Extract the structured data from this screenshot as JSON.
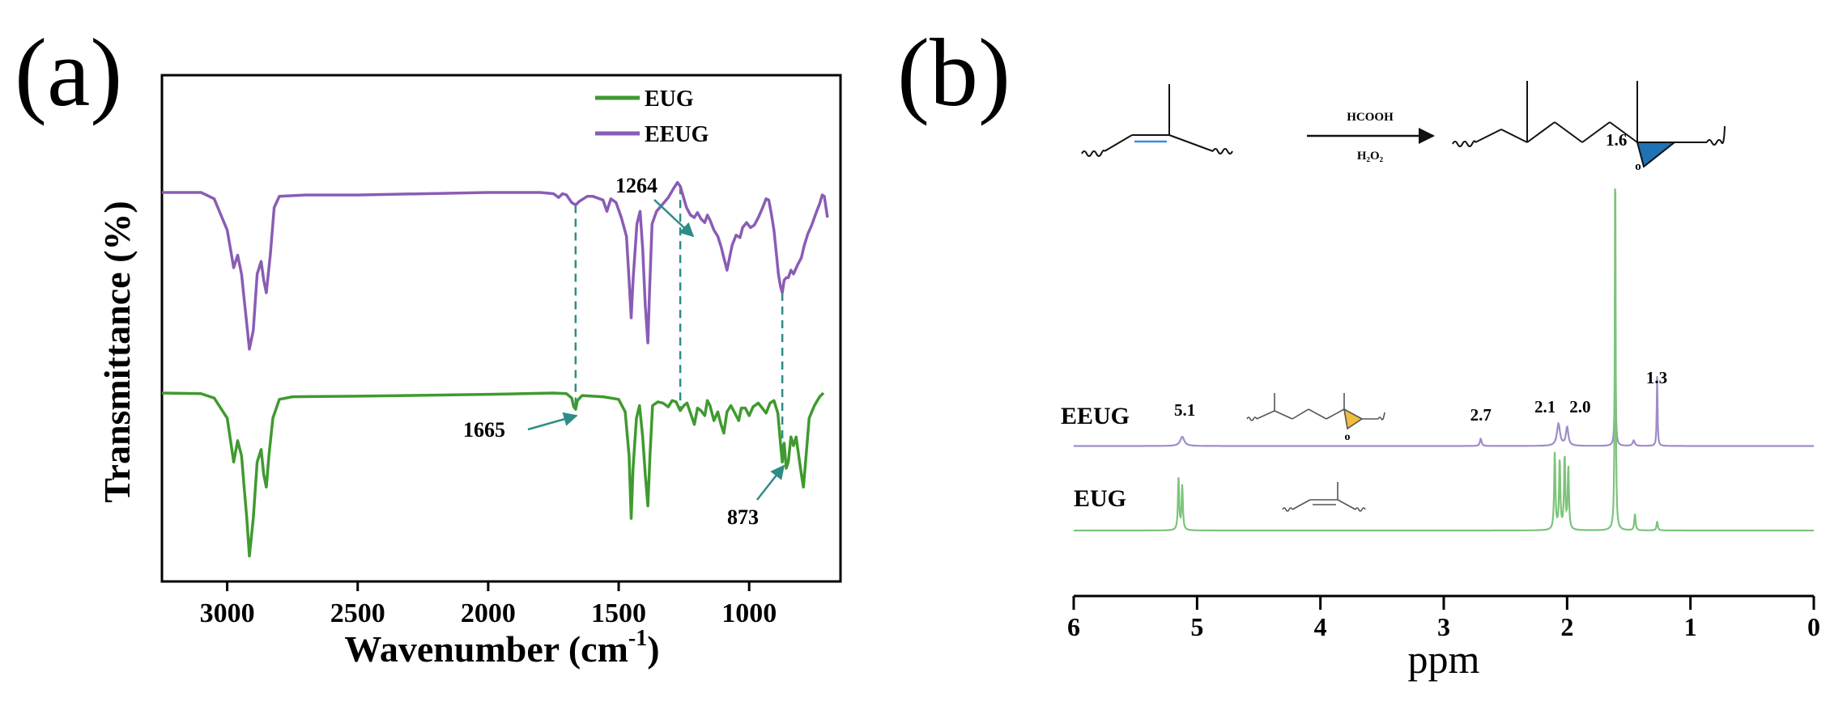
{
  "panel_a_label": "(a)",
  "panel_b_label": "(b)",
  "reaction": {
    "reagent_top": "HCOOH",
    "reagent_bottom": "H₂O₂",
    "oxygen": "o"
  },
  "chart_data": [
    {
      "type": "line",
      "xlabel": "Wavenumber (cm⁻¹)",
      "ylabel": "Transmittance (%)",
      "xlim": [
        3250,
        650
      ],
      "x_reversed": true,
      "xticks": [
        3000,
        2500,
        2000,
        1500,
        1000
      ],
      "legend_position": "top-right",
      "series": [
        {
          "name": "EUG",
          "color": "#3f9a2f",
          "offset": 0,
          "points": [
            [
              3250,
              0
            ],
            [
              3100,
              -0.05
            ],
            [
              3050,
              -0.4
            ],
            [
              3000,
              -2
            ],
            [
              2975,
              -5.5
            ],
            [
              2960,
              -3.8
            ],
            [
              2945,
              -5
            ],
            [
              2935,
              -7.5
            ],
            [
              2925,
              -10
            ],
            [
              2915,
              -13
            ],
            [
              2900,
              -10
            ],
            [
              2885,
              -5.5
            ],
            [
              2870,
              -4.5
            ],
            [
              2860,
              -6.5
            ],
            [
              2850,
              -7.5
            ],
            [
              2840,
              -5
            ],
            [
              2825,
              -2
            ],
            [
              2800,
              -0.5
            ],
            [
              2750,
              -0.3
            ],
            [
              2500,
              -0.25
            ],
            [
              2000,
              -0.1
            ],
            [
              1750,
              0
            ],
            [
              1700,
              -0.05
            ],
            [
              1680,
              -0.4
            ],
            [
              1672,
              -1.1
            ],
            [
              1665,
              -1.3
            ],
            [
              1658,
              -0.6
            ],
            [
              1640,
              -0.2
            ],
            [
              1560,
              -0.3
            ],
            [
              1500,
              -0.5
            ],
            [
              1475,
              -1.5
            ],
            [
              1460,
              -5
            ],
            [
              1452,
              -10
            ],
            [
              1445,
              -6
            ],
            [
              1432,
              -2
            ],
            [
              1420,
              -1
            ],
            [
              1408,
              -3.5
            ],
            [
              1398,
              -6.5
            ],
            [
              1388,
              -9
            ],
            [
              1380,
              -5
            ],
            [
              1370,
              -1
            ],
            [
              1350,
              -0.7
            ],
            [
              1330,
              -0.8
            ],
            [
              1310,
              -1.1
            ],
            [
              1295,
              -0.6
            ],
            [
              1280,
              -0.7
            ],
            [
              1264,
              -1.4
            ],
            [
              1250,
              -1
            ],
            [
              1238,
              -0.8
            ],
            [
              1225,
              -1.6
            ],
            [
              1210,
              -2.5
            ],
            [
              1198,
              -1.2
            ],
            [
              1185,
              -1.4
            ],
            [
              1170,
              -1.8
            ],
            [
              1160,
              -0.6
            ],
            [
              1150,
              -1
            ],
            [
              1135,
              -2.2
            ],
            [
              1120,
              -1.5
            ],
            [
              1108,
              -2.5
            ],
            [
              1097,
              -3.2
            ],
            [
              1085,
              -1.5
            ],
            [
              1070,
              -1
            ],
            [
              1055,
              -1.6
            ],
            [
              1040,
              -2.2
            ],
            [
              1030,
              -1.2
            ],
            [
              1015,
              -1.2
            ],
            [
              1000,
              -1.8
            ],
            [
              985,
              -1.1
            ],
            [
              965,
              -0.8
            ],
            [
              950,
              -1.2
            ],
            [
              935,
              -1.6
            ],
            [
              920,
              -0.8
            ],
            [
              905,
              -0.6
            ],
            [
              890,
              -1.6
            ],
            [
              880,
              -4
            ],
            [
              873,
              -5.5
            ],
            [
              866,
              -4
            ],
            [
              858,
              -6
            ],
            [
              850,
              -5.5
            ],
            [
              840,
              -3.5
            ],
            [
              830,
              -4.2
            ],
            [
              820,
              -3.5
            ],
            [
              810,
              -5
            ],
            [
              800,
              -6.5
            ],
            [
              792,
              -7.5
            ],
            [
              782,
              -5
            ],
            [
              770,
              -2
            ],
            [
              750,
              -1
            ],
            [
              730,
              -0.3
            ],
            [
              715,
              0
            ]
          ]
        },
        {
          "name": "EEUG",
          "color": "#8a5cb5",
          "offset": 16,
          "points": [
            [
              3250,
              0
            ],
            [
              3100,
              0
            ],
            [
              3050,
              -0.5
            ],
            [
              3000,
              -3
            ],
            [
              2975,
              -6
            ],
            [
              2960,
              -5
            ],
            [
              2945,
              -6.5
            ],
            [
              2935,
              -8.5
            ],
            [
              2925,
              -10.5
            ],
            [
              2915,
              -12.5
            ],
            [
              2900,
              -11
            ],
            [
              2885,
              -6.5
            ],
            [
              2870,
              -5.5
            ],
            [
              2860,
              -7
            ],
            [
              2850,
              -8
            ],
            [
              2835,
              -5
            ],
            [
              2820,
              -1.2
            ],
            [
              2800,
              -0.3
            ],
            [
              2700,
              -0.2
            ],
            [
              2500,
              -0.2
            ],
            [
              2000,
              0
            ],
            [
              1800,
              0
            ],
            [
              1750,
              -0.1
            ],
            [
              1730,
              -0.4
            ],
            [
              1715,
              -0.1
            ],
            [
              1700,
              -0.2
            ],
            [
              1680,
              -0.8
            ],
            [
              1665,
              -1
            ],
            [
              1650,
              -0.7
            ],
            [
              1620,
              -0.3
            ],
            [
              1600,
              -0.3
            ],
            [
              1560,
              -0.6
            ],
            [
              1545,
              -1.5
            ],
            [
              1530,
              -0.5
            ],
            [
              1510,
              -0.8
            ],
            [
              1490,
              -2
            ],
            [
              1470,
              -3.5
            ],
            [
              1460,
              -7
            ],
            [
              1452,
              -10
            ],
            [
              1445,
              -7
            ],
            [
              1430,
              -2.5
            ],
            [
              1418,
              -1.5
            ],
            [
              1408,
              -4.5
            ],
            [
              1398,
              -9
            ],
            [
              1388,
              -12
            ],
            [
              1382,
              -8
            ],
            [
              1372,
              -2.5
            ],
            [
              1355,
              -1.5
            ],
            [
              1330,
              -0.9
            ],
            [
              1310,
              -0.4
            ],
            [
              1290,
              0.3
            ],
            [
              1275,
              0.8
            ],
            [
              1264,
              0.5
            ],
            [
              1250,
              -0.5
            ],
            [
              1240,
              -1.2
            ],
            [
              1225,
              -1.8
            ],
            [
              1210,
              -2
            ],
            [
              1198,
              -1.6
            ],
            [
              1185,
              -2.1
            ],
            [
              1170,
              -2.4
            ],
            [
              1160,
              -1.8
            ],
            [
              1150,
              -2.2
            ],
            [
              1135,
              -3
            ],
            [
              1120,
              -3.5
            ],
            [
              1108,
              -4.3
            ],
            [
              1097,
              -5.2
            ],
            [
              1085,
              -6.2
            ],
            [
              1075,
              -5.2
            ],
            [
              1065,
              -4.2
            ],
            [
              1050,
              -3.4
            ],
            [
              1035,
              -3.6
            ],
            [
              1025,
              -2.8
            ],
            [
              1010,
              -2.4
            ],
            [
              995,
              -2.8
            ],
            [
              980,
              -2.6
            ],
            [
              965,
              -2
            ],
            [
              950,
              -1.3
            ],
            [
              935,
              -0.5
            ],
            [
              925,
              -0.6
            ],
            [
              915,
              -1.7
            ],
            [
              905,
              -3
            ],
            [
              895,
              -5
            ],
            [
              888,
              -6.5
            ],
            [
              880,
              -7.5
            ],
            [
              873,
              -8
            ],
            [
              866,
              -7
            ],
            [
              858,
              -6.8
            ],
            [
              850,
              -6.8
            ],
            [
              840,
              -6.2
            ],
            [
              830,
              -6.5
            ],
            [
              815,
              -5.8
            ],
            [
              800,
              -5.2
            ],
            [
              790,
              -4.3
            ],
            [
              775,
              -3.3
            ],
            [
              760,
              -2.6
            ],
            [
              745,
              -1.7
            ],
            [
              730,
              -0.9
            ],
            [
              720,
              -0.2
            ],
            [
              712,
              -0.3
            ],
            [
              700,
              -2
            ]
          ]
        }
      ],
      "annotations": [
        {
          "label": "1264",
          "x": 1264
        },
        {
          "label": "1665",
          "x": 1665
        },
        {
          "label": "873",
          "x": 873
        }
      ]
    },
    {
      "type": "line",
      "xlabel": "ppm",
      "ylabel": "",
      "xlim": [
        6,
        0
      ],
      "x_reversed": true,
      "xticks": [
        6,
        5,
        4,
        3,
        2,
        1,
        0
      ],
      "series": [
        {
          "name": "EEUG",
          "color": "#a08cc8",
          "offset": 55,
          "baseline": 0,
          "peaks": [
            {
              "x": 5.12,
              "height": 5,
              "width": 0.02
            },
            {
              "x": 2.7,
              "height": 4,
              "width": 0.008
            },
            {
              "x": 2.07,
              "height": 12,
              "width": 0.015
            },
            {
              "x": 2.0,
              "height": 10,
              "width": 0.012
            },
            {
              "x": 1.61,
              "height": 55,
              "width": 0.005
            },
            {
              "x": 1.46,
              "height": 3,
              "width": 0.01
            },
            {
              "x": 1.27,
              "height": 38,
              "width": 0.004
            }
          ]
        },
        {
          "name": "EUG",
          "color": "#7cc47a",
          "offset": 0,
          "baseline": 0,
          "peaks": [
            {
              "x": 5.15,
              "height": 28,
              "width": 0.006
            },
            {
              "x": 5.12,
              "height": 24,
              "width": 0.006
            },
            {
              "x": 2.1,
              "height": 42,
              "width": 0.006
            },
            {
              "x": 2.06,
              "height": 38,
              "width": 0.006
            },
            {
              "x": 2.02,
              "height": 40,
              "width": 0.006
            },
            {
              "x": 1.99,
              "height": 34,
              "width": 0.006
            },
            {
              "x": 1.61,
              "height": 215,
              "width": 0.004
            },
            {
              "x": 1.45,
              "height": 9,
              "width": 0.006
            },
            {
              "x": 1.27,
              "height": 5,
              "width": 0.006
            }
          ]
        }
      ],
      "peak_labels": [
        {
          "label": "5.1",
          "x": 5.1
        },
        {
          "label": "2.7",
          "x": 2.7
        },
        {
          "label": "2.1",
          "x": 2.1
        },
        {
          "label": "2.0",
          "x": 2.0
        },
        {
          "label": "1.6",
          "x": 1.6
        },
        {
          "label": "1.3",
          "x": 1.3
        }
      ]
    }
  ]
}
